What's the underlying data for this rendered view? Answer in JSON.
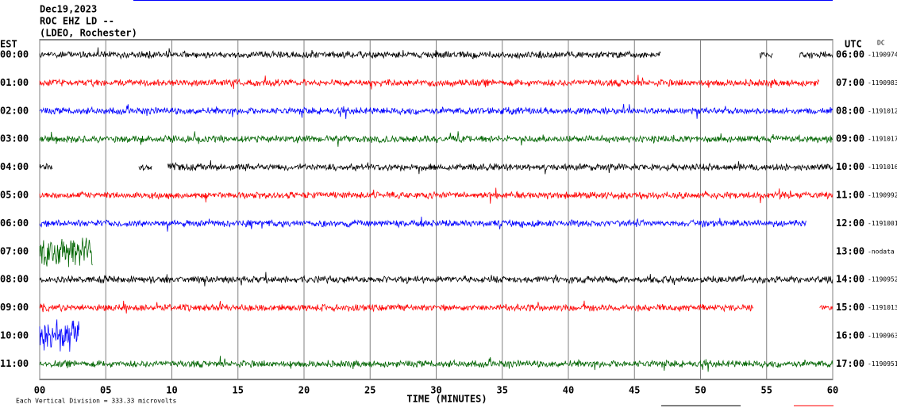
{
  "chart_data": {
    "type": "helicorder",
    "title_lines": [
      "Dec19,2023",
      "ROC EHZ LD --",
      "(LDEO, Rochester)"
    ],
    "left_label": "EST",
    "right_label": "UTC",
    "dc_label": "DC",
    "xlabel": "TIME (MINUTES)",
    "note": "Each Vertical Division =  333.33 microvolts",
    "xlim": [
      0,
      60
    ],
    "xticks": [
      {
        "value": 0,
        "label": "00"
      },
      {
        "value": 5,
        "label": "05"
      },
      10,
      15,
      20,
      25,
      30,
      35,
      40,
      45,
      50,
      55,
      60
    ],
    "rows": [
      {
        "est": "00:00",
        "utc": "06:00",
        "dc": "-1190974",
        "color": "#000000",
        "segments": [
          [
            0,
            47
          ],
          [
            54.5,
            55.5
          ],
          [
            57.5,
            60
          ]
        ]
      },
      {
        "est": "01:00",
        "utc": "07:00",
        "dc": "-1190983",
        "color": "#ff0000",
        "segments": [
          [
            0,
            59
          ]
        ]
      },
      {
        "est": "02:00",
        "utc": "08:00",
        "dc": "-1191012",
        "color": "#0000ff",
        "segments": [
          [
            0,
            60
          ]
        ]
      },
      {
        "est": "03:00",
        "utc": "09:00",
        "dc": "-1191017",
        "color": "#006400",
        "segments": [
          [
            0,
            60
          ]
        ]
      },
      {
        "est": "04:00",
        "utc": "10:00",
        "dc": "-1191016",
        "color": "#000000",
        "segments": [
          [
            0,
            1
          ],
          [
            7.5,
            8.5
          ],
          [
            9.7,
            60
          ]
        ]
      },
      {
        "est": "05:00",
        "utc": "11:00",
        "dc": "-1190992",
        "color": "#ff0000",
        "segments": [
          [
            0,
            60
          ]
        ]
      },
      {
        "est": "06:00",
        "utc": "12:00",
        "dc": "-1191001",
        "color": "#0000ff",
        "segments": [
          [
            0,
            58
          ]
        ]
      },
      {
        "est": "07:00",
        "utc": "13:00",
        "dc": "-nodata",
        "color": "#006400",
        "segments": [
          [
            0,
            4
          ]
        ]
      },
      {
        "est": "08:00",
        "utc": "14:00",
        "dc": "-1190952",
        "color": "#000000",
        "segments": [
          [
            0,
            60
          ]
        ]
      },
      {
        "est": "09:00",
        "utc": "15:00",
        "dc": "-1191013",
        "color": "#ff0000",
        "segments": [
          [
            0,
            54
          ],
          [
            59,
            60
          ]
        ]
      },
      {
        "est": "10:00",
        "utc": "16:00",
        "dc": "-1190963",
        "color": "#0000ff",
        "segments": [
          [
            0,
            3
          ]
        ]
      },
      {
        "est": "11:00",
        "utc": "17:00",
        "dc": "-1190951",
        "color": "#006400",
        "segments": [
          [
            0,
            60
          ]
        ]
      }
    ]
  }
}
